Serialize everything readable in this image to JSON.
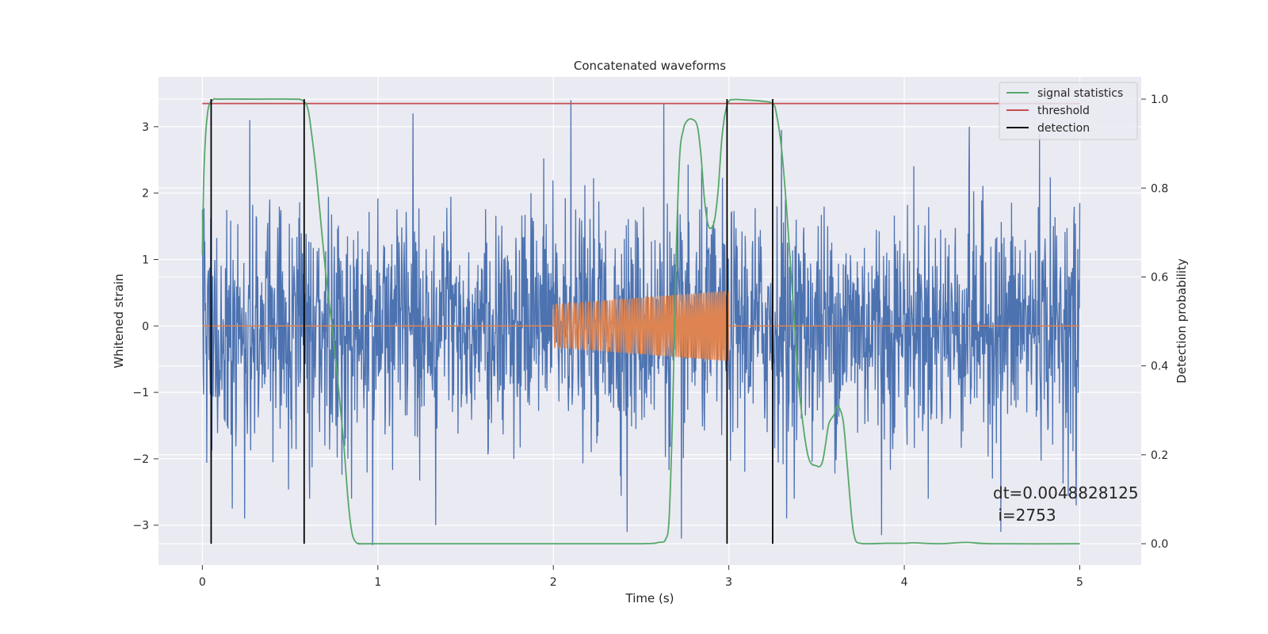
{
  "chart_data": {
    "type": "line",
    "title": "Concatenated waveforms",
    "xlabel": "Time (s)",
    "ylabel": "Whitened strain",
    "y2label": "Detection probability",
    "xlim": [
      -0.25,
      5.35
    ],
    "ylim": [
      -3.6,
      3.75
    ],
    "y2lim": [
      -0.048,
      1.05
    ],
    "x_ticks": [
      0,
      1,
      2,
      3,
      4,
      5
    ],
    "y_ticks": [
      -3,
      -2,
      -1,
      0,
      1,
      2,
      3
    ],
    "y2_ticks": [
      0.0,
      0.2,
      0.4,
      0.6,
      0.8,
      1.0
    ],
    "x_tick_labels": [
      "0",
      "1",
      "2",
      "3",
      "4",
      "5"
    ],
    "y_tick_labels": [
      "−3",
      "−2",
      "−1",
      "0",
      "1",
      "2",
      "3"
    ],
    "y2_tick_labels": [
      "0.0",
      "0.2",
      "0.4",
      "0.6",
      "0.8",
      "1.0"
    ],
    "grid": true,
    "legend_placement": "top-right",
    "legend": [
      {
        "label": "signal statistics",
        "color": "#55a868"
      },
      {
        "label": "threshold",
        "color": "#c44e52"
      },
      {
        "label": "detection",
        "color": "#000000"
      }
    ],
    "annotation": {
      "line1": "dt=0.0048828125",
      "line2": " i=2753"
    },
    "strain": {
      "color": "#4c72b0",
      "x_range": [
        0,
        5
      ],
      "sigma": 0.85,
      "peaks": [
        {
          "x": 0.05,
          "y": 2.8
        },
        {
          "x": 0.27,
          "y": 3.1
        },
        {
          "x": 0.05,
          "y": -2.3
        },
        {
          "x": 0.17,
          "y": -2.75
        },
        {
          "x": 0.24,
          "y": -2.9
        },
        {
          "x": 0.97,
          "y": -3.3
        },
        {
          "x": 0.83,
          "y": -2.0
        },
        {
          "x": 1.2,
          "y": 3.2
        },
        {
          "x": 1.33,
          "y": -3.0
        },
        {
          "x": 2.1,
          "y": 3.4
        },
        {
          "x": 2.42,
          "y": -3.1
        },
        {
          "x": 2.63,
          "y": 3.35
        },
        {
          "x": 2.73,
          "y": -3.2
        },
        {
          "x": 3.3,
          "y": 2.95
        },
        {
          "x": 3.33,
          "y": -2.9
        },
        {
          "x": 3.87,
          "y": -3.15
        },
        {
          "x": 4.37,
          "y": 3.0
        },
        {
          "x": 4.55,
          "y": -3.1
        },
        {
          "x": 4.77,
          "y": 2.9
        },
        {
          "x": 4.98,
          "y": -2.7
        },
        {
          "x": 0.0,
          "y": 1.75
        },
        {
          "x": 5.0,
          "y": 1.85
        }
      ]
    },
    "injection": {
      "color": "#dd8452",
      "x_range": [
        0,
        5
      ],
      "signal_start": 2.0,
      "signal_end": 3.0,
      "amp_start": 0.32,
      "amp_end": 0.53,
      "cycles": 75
    },
    "signal_statistics": {
      "color": "#55a868",
      "x": [
        0.0,
        0.01,
        0.03,
        0.06,
        0.1,
        0.3,
        0.52,
        0.57,
        0.6,
        0.62,
        0.65,
        0.7,
        0.75,
        0.8,
        0.83,
        0.85,
        0.87,
        0.9,
        1.0,
        2.0,
        2.5,
        2.6,
        2.64,
        2.66,
        2.68,
        2.7,
        2.72,
        2.74,
        2.76,
        2.79,
        2.82,
        2.84,
        2.86,
        2.88,
        2.9,
        2.92,
        2.94,
        2.96,
        2.98,
        3.0,
        3.03,
        3.1,
        3.2,
        3.25,
        3.27,
        3.3,
        3.33,
        3.37,
        3.4,
        3.45,
        3.5,
        3.53,
        3.55,
        3.57,
        3.6,
        3.62,
        3.65,
        3.67,
        3.7,
        3.72,
        3.75,
        3.8,
        3.9,
        4.0,
        4.05,
        4.2,
        4.35,
        4.5,
        5.0
      ],
      "y": [
        0.65,
        0.85,
        0.97,
        0.998,
        1.0,
        1.0,
        1.0,
        0.997,
        0.98,
        0.93,
        0.83,
        0.62,
        0.45,
        0.25,
        0.1,
        0.03,
        0.006,
        0.0,
        0.0,
        0.0,
        0.0,
        0.003,
        0.01,
        0.06,
        0.3,
        0.65,
        0.87,
        0.93,
        0.95,
        0.955,
        0.94,
        0.88,
        0.78,
        0.72,
        0.71,
        0.73,
        0.8,
        0.91,
        0.97,
        0.995,
        0.999,
        0.998,
        0.995,
        0.99,
        0.97,
        0.89,
        0.75,
        0.52,
        0.35,
        0.2,
        0.175,
        0.18,
        0.22,
        0.27,
        0.29,
        0.31,
        0.28,
        0.2,
        0.06,
        0.01,
        0.001,
        0.0,
        0.001,
        0.001,
        0.002,
        0.0,
        0.003,
        0.0,
        0.0
      ]
    },
    "threshold": {
      "color": "#c44e52",
      "value": 0.99,
      "x_range": [
        0,
        5
      ]
    },
    "detections": {
      "color": "#000000",
      "x": [
        0.05,
        0.58,
        2.99,
        3.25
      ]
    }
  }
}
